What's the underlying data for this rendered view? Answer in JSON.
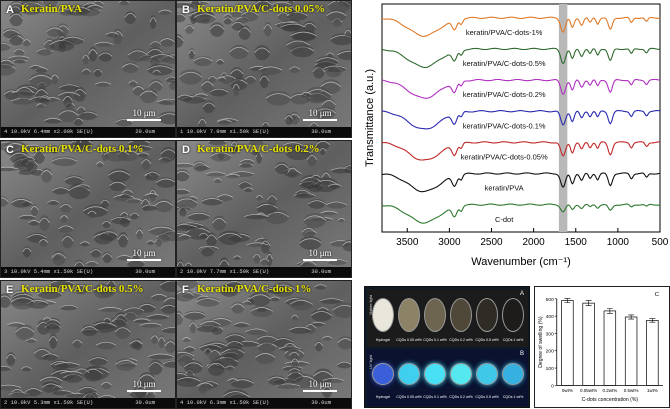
{
  "sem_panels": [
    {
      "letter": "A",
      "title": "Keratin/PVA",
      "scale": "10 μm",
      "meta": "4 10.0kV 6.4mm x2.00k SE(U)",
      "mag": "20.0um"
    },
    {
      "letter": "B",
      "title": "Keratin/PVA/C-dots 0.05%",
      "scale": "10 μm",
      "meta": "1 10.0kV 7.9mm x1.50k SE(U)",
      "mag": "30.0um"
    },
    {
      "letter": "C",
      "title": "Keratin/PVA/C-dots 0.1%",
      "scale": "10 μm",
      "meta": "3 10.0kV 5.4mm x1.50k SE(U)",
      "mag": "30.0um"
    },
    {
      "letter": "D",
      "title": "Keratin/PVA/C-dots 0.2%",
      "scale": "10 μm",
      "meta": "2 10.0kV 7.7mm x1.50k SE(U)",
      "mag": "30.0um"
    },
    {
      "letter": "E",
      "title": "Keratin/PVA/C-dots 0.5%",
      "scale": "10 μm",
      "meta": "2 10.0kV 5.3mm x1.50k SE(U)",
      "mag": "30.0um"
    },
    {
      "letter": "F",
      "title": "Keratin/PVA/C-dots 1%",
      "scale": "10 μm",
      "meta": "4 10.0kV 6.3mm x1.50k SE(U)",
      "mag": "30.0um"
    }
  ],
  "photos": {
    "top_label": "A",
    "bottom_label": "B",
    "top_side": "Visible light",
    "bottom_side": "UV light",
    "dish_labels": [
      "Hydrogel",
      "CQDs 0.05 wt%",
      "CQDs 0.1 wt%",
      "CQDs 0.2 wt%",
      "CQDs 0.5 wt%",
      "CQDs 1 wt%"
    ]
  },
  "chart_data": [
    {
      "type": "line",
      "title": "",
      "xlabel": "Wavenumber (cm⁻¹)",
      "ylabel": "Transmittance (a.u.)",
      "xlim": [
        3800,
        500
      ],
      "x_ticks": [
        3500,
        3000,
        2500,
        2000,
        1500,
        1000,
        500
      ],
      "highlight_band": [
        1700,
        1600
      ],
      "series": [
        {
          "name": "keratin/PVA/C-dots-1%",
          "color": "#e07b2a"
        },
        {
          "name": "keratin/PVA/C-dots-0.5%",
          "color": "#2f6b2f"
        },
        {
          "name": "keratin/PVA/C-dots-0.2%",
          "color": "#b030c0"
        },
        {
          "name": "keratin/PVA/C-dots-0.1%",
          "color": "#2b2bb0"
        },
        {
          "name": "keratin/PVA/C-dots-0.05%",
          "color": "#c02828"
        },
        {
          "name": "keratin/PVA",
          "color": "#111111"
        },
        {
          "name": "C-dot",
          "color": "#2f7a2f"
        }
      ]
    },
    {
      "type": "bar",
      "panel_label": "C",
      "title": "",
      "xlabel": "C-dots concentration (%)",
      "ylabel": "Degree of swelling (%)",
      "categories": [
        "0wt%",
        "0.05wt%",
        "0.2wt%",
        "0.5wt%",
        "1wt%"
      ],
      "values": [
        490,
        475,
        430,
        395,
        375
      ],
      "errors": [
        12,
        15,
        14,
        12,
        10
      ],
      "ylim": [
        0,
        500
      ],
      "y_ticks": [
        0,
        100,
        200,
        300,
        400,
        500
      ]
    }
  ]
}
